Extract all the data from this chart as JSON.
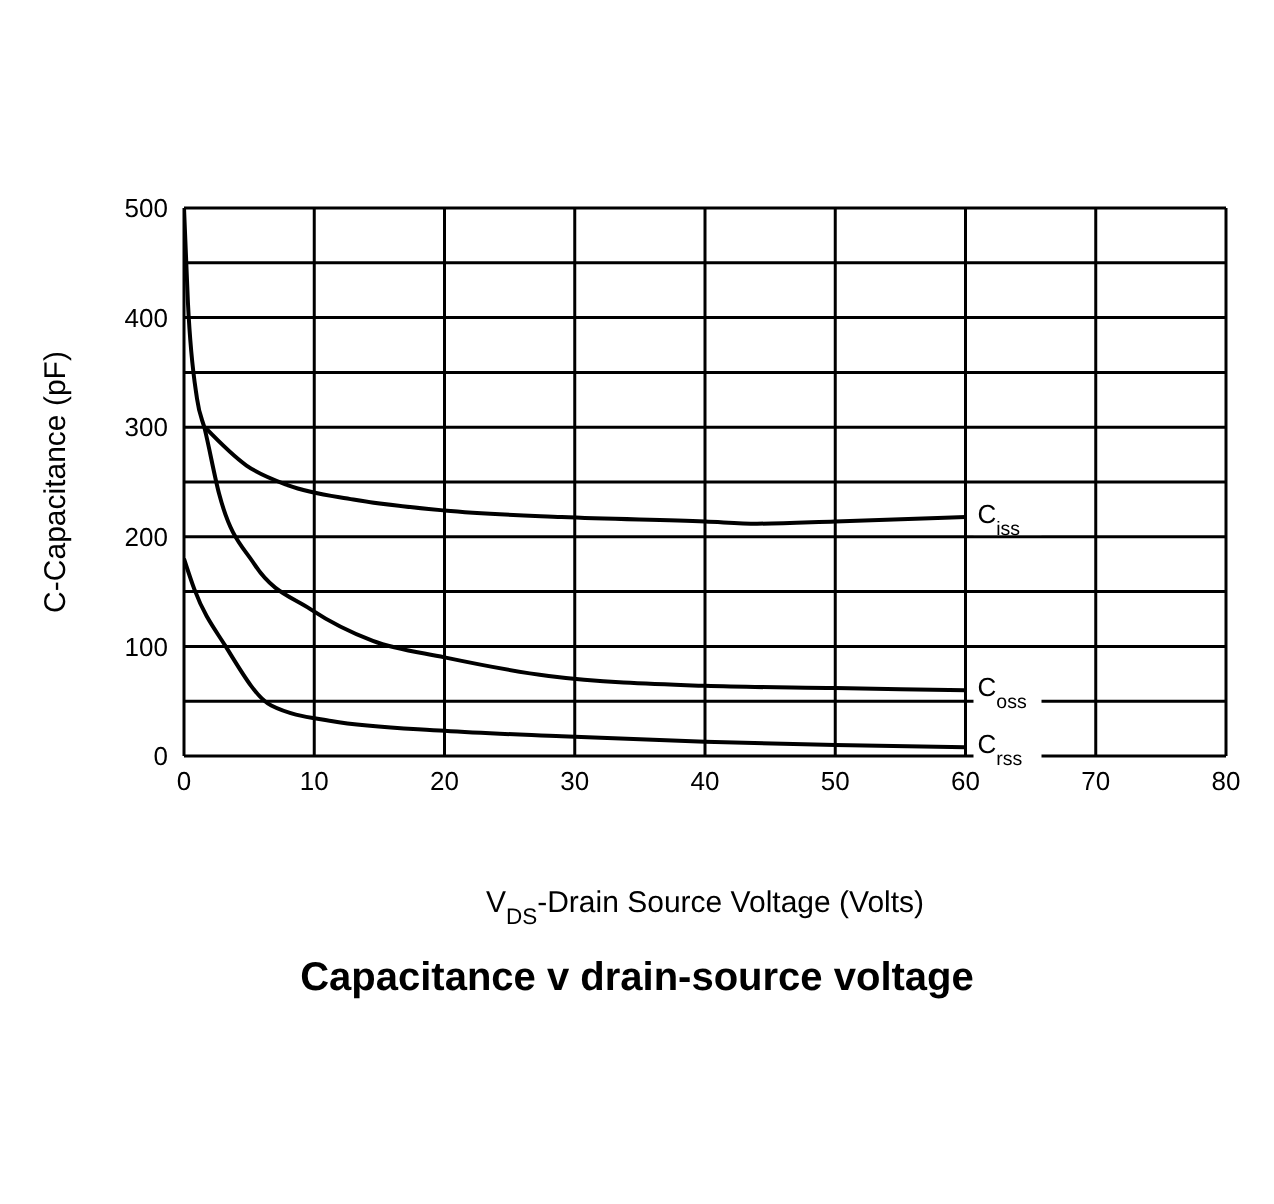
{
  "chart_data": {
    "type": "line",
    "title": "Capacitance v drain-source voltage",
    "xlabel": "V$_{DS}$-Drain Source Voltage (Volts)",
    "ylabel": "C-Capacitance (pF)",
    "xlim": [
      0,
      80
    ],
    "xticks": [
      0,
      10,
      20,
      30,
      40,
      50,
      60,
      70,
      80
    ],
    "ylim": [
      0,
      500
    ],
    "yticks": [
      0,
      {
        "value": 50,
        "label": null
      },
      100,
      {
        "value": 150,
        "label": null
      },
      200,
      {
        "value": 250,
        "label": null
      },
      300,
      {
        "value": 350,
        "label": null
      },
      400,
      {
        "value": 450,
        "label": null
      },
      500
    ],
    "grid": true,
    "marker": "none",
    "line_style": "solid",
    "series": [
      {
        "name": "C$_{iss}$",
        "color": "#000000",
        "x": [
          1.6,
          4.8,
          8,
          13,
          20,
          29,
          40,
          44,
          50,
          60
        ],
        "values": [
          300,
          265,
          247,
          234,
          224,
          218,
          214,
          212,
          214,
          218
        ]
      },
      {
        "name": "C$_{oss}$",
        "color": "#000000",
        "x": [
          0,
          0.3,
          1,
          1.6,
          2.7,
          5.4,
          9.7,
          14.5,
          20,
          28,
          40,
          50,
          60
        ],
        "values": [
          500,
          414,
          326,
          298,
          239,
          175,
          134,
          105,
          90,
          73,
          64,
          62,
          60
        ]
      },
      {
        "name": "C$_{rss}$",
        "color": "#000000",
        "x": [
          0,
          0.8,
          3.2,
          6.7,
          11.3,
          20,
          29,
          40,
          50,
          60
        ],
        "values": [
          180,
          152,
          100,
          46,
          32,
          23,
          18,
          13,
          10,
          8
        ]
      }
    ]
  }
}
